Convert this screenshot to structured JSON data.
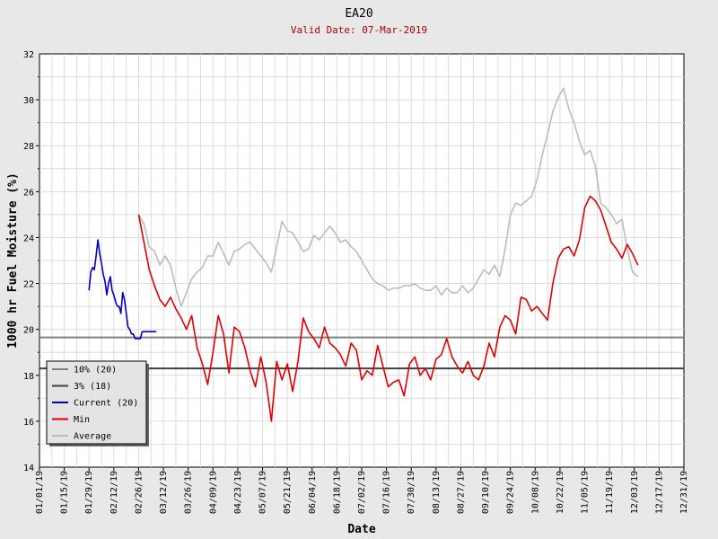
{
  "chart_data": {
    "type": "line",
    "title": "EA20",
    "subtitle": "Valid Date: 07-Mar-2019",
    "xlabel": "Date",
    "ylabel": "1000 hr Fuel Moisture (%)",
    "ylim": [
      14,
      32
    ],
    "yticks": [
      "14",
      "16",
      "18",
      "20",
      "22",
      "24",
      "26",
      "28",
      "30",
      "32"
    ],
    "xticks": [
      "01/01/19",
      "01/15/19",
      "01/29/19",
      "02/12/19",
      "02/26/19",
      "03/12/19",
      "03/26/19",
      "04/09/19",
      "04/23/19",
      "05/07/19",
      "05/21/19",
      "06/04/19",
      "06/18/19",
      "07/02/19",
      "07/16/19",
      "07/30/19",
      "08/13/19",
      "08/27/19",
      "09/10/19",
      "09/24/19",
      "10/08/19",
      "10/22/19",
      "11/05/19",
      "11/19/19",
      "12/03/19",
      "12/17/19",
      "12/31/19"
    ],
    "grid": true,
    "legend_position": "bottom-left",
    "legend": [
      "10% (20)",
      "3% (18)",
      "Current (20)",
      "Min",
      "Average"
    ],
    "reference_lines": [
      {
        "name": "10% (20)",
        "value": 19.65,
        "color": "#808080"
      },
      {
        "name": "3% (18)",
        "value": 18.3,
        "color": "#404040"
      }
    ],
    "series": [
      {
        "name": "Current (20)",
        "color": "#0000c0",
        "x": [
          28,
          29,
          30,
          31,
          32,
          33,
          34,
          35,
          36,
          37,
          38,
          39,
          40,
          41,
          42,
          43,
          44,
          45,
          46,
          47,
          48,
          49,
          50,
          51,
          52,
          53,
          54,
          55,
          56,
          57,
          58,
          59,
          60,
          61,
          62,
          63,
          64,
          65,
          66
        ],
        "y": [
          21.7,
          22.5,
          22.7,
          22.6,
          23.2,
          23.9,
          23.3,
          22.9,
          22.4,
          22.1,
          21.5,
          22.0,
          22.3,
          21.7,
          21.5,
          21.2,
          21.0,
          21.0,
          20.7,
          21.6,
          21.3,
          20.7,
          20.1,
          20.0,
          19.8,
          19.8,
          19.6,
          19.6,
          19.6,
          19.6,
          19.9,
          19.9,
          19.9,
          19.9,
          19.9,
          19.9,
          19.9,
          19.9,
          19.9
        ]
      },
      {
        "name": "Min",
        "color": "#e00000",
        "x": [
          56,
          59,
          62,
          65,
          68,
          71,
          74,
          77,
          80,
          83,
          86,
          89,
          92,
          95,
          98,
          101,
          104,
          107,
          110,
          113,
          116,
          119,
          122,
          125,
          128,
          131,
          134,
          137,
          140,
          143,
          146,
          149,
          152,
          155,
          158,
          161,
          164,
          167,
          170,
          173,
          176,
          179,
          182,
          185,
          188,
          191,
          194,
          197,
          200,
          203,
          206,
          209,
          212,
          215,
          218,
          221,
          224,
          227,
          230,
          233,
          236,
          239,
          242,
          245,
          248,
          251,
          254,
          257,
          260,
          263,
          266,
          269,
          272,
          275,
          278,
          281,
          284,
          287,
          290,
          293,
          296,
          299,
          302,
          305,
          308,
          311,
          314,
          317,
          320,
          323,
          326,
          329,
          332,
          335,
          338
        ],
        "y": [
          25.0,
          23.8,
          22.6,
          21.9,
          21.3,
          21.0,
          21.4,
          20.9,
          20.5,
          20.0,
          20.6,
          19.2,
          18.5,
          17.6,
          19.0,
          20.6,
          19.8,
          18.1,
          20.1,
          19.9,
          19.2,
          18.2,
          17.5,
          18.8,
          17.7,
          16.0,
          18.6,
          17.8,
          18.5,
          17.3,
          18.6,
          20.5,
          19.9,
          19.6,
          19.2,
          20.1,
          19.4,
          19.2,
          18.9,
          18.4,
          19.4,
          19.1,
          17.8,
          18.2,
          18.0,
          19.3,
          18.4,
          17.5,
          17.7,
          17.8,
          17.1,
          18.5,
          18.8,
          18.0,
          18.3,
          17.8,
          18.7,
          18.9,
          19.6,
          18.8,
          18.4,
          18.1,
          18.6,
          18.0,
          17.8,
          18.4,
          19.4,
          18.8,
          20.1,
          20.6,
          20.4,
          19.8,
          21.4,
          21.3,
          20.8,
          21.0,
          20.7,
          20.4,
          22.0,
          23.1,
          23.5,
          23.6,
          23.2,
          23.9,
          25.3,
          25.8,
          25.6,
          25.2,
          24.5,
          23.8,
          23.5,
          23.1,
          23.7,
          23.3,
          22.8
        ]
      },
      {
        "name": "Average",
        "color": "#bcbcbc",
        "x": [
          56,
          59,
          62,
          65,
          68,
          71,
          74,
          77,
          80,
          83,
          86,
          89,
          92,
          95,
          98,
          101,
          104,
          107,
          110,
          113,
          116,
          119,
          122,
          125,
          128,
          131,
          134,
          137,
          140,
          143,
          146,
          149,
          152,
          155,
          158,
          161,
          164,
          167,
          170,
          173,
          176,
          179,
          182,
          185,
          188,
          191,
          194,
          197,
          200,
          203,
          206,
          209,
          212,
          215,
          218,
          221,
          224,
          227,
          230,
          233,
          236,
          239,
          242,
          245,
          248,
          251,
          254,
          257,
          260,
          263,
          266,
          269,
          272,
          275,
          278,
          281,
          284,
          287,
          290,
          293,
          296,
          299,
          302,
          305,
          308,
          311,
          314,
          317,
          320,
          323,
          326,
          329,
          332,
          335,
          338
        ],
        "y": [
          25.0,
          24.6,
          23.6,
          23.4,
          22.8,
          23.2,
          22.8,
          21.8,
          21.0,
          21.6,
          22.2,
          22.5,
          22.7,
          23.2,
          23.2,
          23.8,
          23.3,
          22.8,
          23.4,
          23.5,
          23.7,
          23.8,
          23.5,
          23.2,
          22.9,
          22.5,
          23.6,
          24.7,
          24.3,
          24.2,
          23.8,
          23.4,
          23.5,
          24.1,
          23.9,
          24.2,
          24.5,
          24.2,
          23.8,
          23.9,
          23.6,
          23.4,
          23.0,
          22.6,
          22.2,
          22.0,
          21.9,
          21.7,
          21.8,
          21.8,
          21.9,
          21.9,
          22.0,
          21.8,
          21.7,
          21.7,
          21.9,
          21.5,
          21.8,
          21.6,
          21.6,
          21.9,
          21.6,
          21.8,
          22.2,
          22.6,
          22.4,
          22.8,
          22.3,
          23.5,
          25.0,
          25.5,
          25.4,
          25.6,
          25.8,
          26.5,
          27.6,
          28.5,
          29.5,
          30.1,
          30.5,
          29.6,
          29.0,
          28.2,
          27.6,
          27.8,
          27.1,
          25.5,
          25.3,
          25.0,
          24.6,
          24.8,
          23.5,
          22.5,
          22.3
        ]
      }
    ]
  }
}
